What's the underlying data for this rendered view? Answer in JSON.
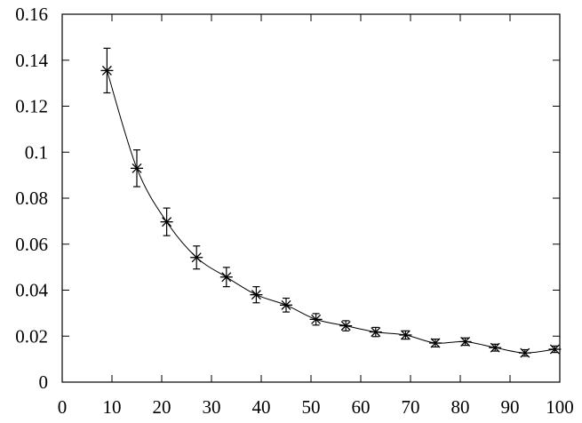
{
  "chart_data": {
    "type": "line",
    "title": "",
    "xlabel": "",
    "ylabel": "",
    "xlim": [
      0,
      100
    ],
    "ylim": [
      0,
      0.16
    ],
    "grid": false,
    "legend": "none",
    "x_ticks": [
      0,
      10,
      20,
      30,
      40,
      50,
      60,
      70,
      80,
      90,
      100
    ],
    "x_tick_labels": [
      "0",
      "10",
      "20",
      "30",
      "40",
      "50",
      "60",
      "70",
      "80",
      "90",
      "100"
    ],
    "y_ticks": [
      0,
      0.02,
      0.04,
      0.06,
      0.08,
      0.1,
      0.12,
      0.14,
      0.16
    ],
    "y_tick_labels": [
      "0",
      "0.02",
      "0.04",
      "0.06",
      "0.08",
      "0.1",
      "0.12",
      "0.14",
      "0.16"
    ],
    "marker": "asterisk",
    "line_color": "#000000",
    "series": [
      {
        "x": [
          9,
          15,
          21,
          27,
          33,
          39,
          45,
          51,
          57,
          63,
          69,
          75,
          81,
          87,
          93,
          99
        ],
        "y": [
          0.1355,
          0.093,
          0.0697,
          0.0542,
          0.0457,
          0.038,
          0.0335,
          0.0273,
          0.0245,
          0.0218,
          0.0205,
          0.017,
          0.0176,
          0.015,
          0.0127,
          0.0143
        ],
        "y_err": [
          0.0097,
          0.008,
          0.006,
          0.005,
          0.0042,
          0.0035,
          0.003,
          0.0025,
          0.0022,
          0.002,
          0.0018,
          0.0017,
          0.0016,
          0.0015,
          0.0014,
          0.0014
        ]
      }
    ]
  }
}
